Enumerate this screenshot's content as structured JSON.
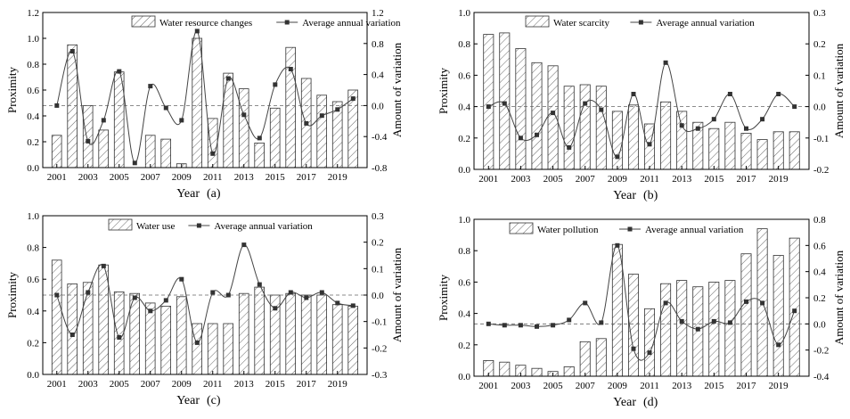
{
  "chart_data": [
    {
      "panel_label": "(a)",
      "type": "bar+line",
      "xlabel": "Year",
      "ylabel_left": "Proximity",
      "ylabel_right": "Amount of variation",
      "years": [
        2001,
        2002,
        2003,
        2004,
        2005,
        2006,
        2007,
        2008,
        2009,
        2010,
        2011,
        2012,
        2013,
        2014,
        2015,
        2016,
        2017,
        2018,
        2019,
        2020
      ],
      "xticks": [
        "2001",
        "2003",
        "2005",
        "2007",
        "2009",
        "2011",
        "2013",
        "2015",
        "2017",
        "2019"
      ],
      "left_ylim": [
        0,
        1.2
      ],
      "left_ticks": [
        "0.0",
        "0.2",
        "0.4",
        "0.6",
        "0.8",
        "1.0",
        "1.2"
      ],
      "right_ylim": [
        -0.8,
        1.2
      ],
      "right_ticks": [
        "-0.8",
        "-0.4",
        "0.0",
        "0.4",
        "0.8",
        "1.2"
      ],
      "legend_bar": "Water resource changes",
      "legend_line": "Average annual variation",
      "bar_values": [
        0.25,
        0.95,
        0.48,
        0.29,
        0.74,
        0.0,
        0.25,
        0.22,
        0.03,
        1.0,
        0.38,
        0.73,
        0.61,
        0.19,
        0.46,
        0.93,
        0.69,
        0.56,
        0.51,
        0.6
      ],
      "line_values": [
        0.0,
        0.7,
        -0.46,
        -0.19,
        0.44,
        -0.74,
        0.25,
        -0.03,
        -0.19,
        0.96,
        -0.62,
        0.35,
        -0.12,
        -0.42,
        0.27,
        0.47,
        -0.23,
        -0.13,
        -0.05,
        0.09
      ]
    },
    {
      "panel_label": "(b)",
      "type": "bar+line",
      "xlabel": "Year",
      "ylabel_left": "Proximity",
      "ylabel_right": "Amount of variation",
      "years": [
        2001,
        2002,
        2003,
        2004,
        2005,
        2006,
        2007,
        2008,
        2009,
        2010,
        2011,
        2012,
        2013,
        2014,
        2015,
        2016,
        2017,
        2018,
        2019,
        2020
      ],
      "xticks": [
        "2001",
        "2003",
        "2005",
        "2007",
        "2009",
        "2011",
        "2013",
        "2015",
        "2017",
        "2019"
      ],
      "left_ylim": [
        0,
        1.0
      ],
      "left_ticks": [
        "0.0",
        "0.2",
        "0.4",
        "0.6",
        "0.8",
        "1.0"
      ],
      "right_ylim": [
        -0.2,
        0.3
      ],
      "right_ticks": [
        "-0.2",
        "-0.1",
        "0.0",
        "0.1",
        "0.2",
        "0.3"
      ],
      "legend_bar": "Water scarcity",
      "legend_line": "Average annual variation",
      "bar_values": [
        0.86,
        0.87,
        0.77,
        0.68,
        0.66,
        0.53,
        0.54,
        0.53,
        0.37,
        0.41,
        0.29,
        0.43,
        0.37,
        0.3,
        0.26,
        0.3,
        0.23,
        0.19,
        0.24,
        0.24
      ],
      "line_values": [
        0.0,
        0.01,
        -0.1,
        -0.09,
        -0.02,
        -0.13,
        0.01,
        -0.01,
        -0.16,
        0.04,
        -0.12,
        0.14,
        -0.06,
        -0.07,
        -0.04,
        0.04,
        -0.07,
        -0.04,
        0.04,
        0.0
      ]
    },
    {
      "panel_label": "(c)",
      "type": "bar+line",
      "xlabel": "Year",
      "ylabel_left": "Proximity",
      "ylabel_right": "Amount of variation",
      "years": [
        2001,
        2002,
        2003,
        2004,
        2005,
        2006,
        2007,
        2008,
        2009,
        2010,
        2011,
        2012,
        2013,
        2014,
        2015,
        2016,
        2017,
        2018,
        2019,
        2020
      ],
      "xticks": [
        "2001",
        "2003",
        "2005",
        "2007",
        "2009",
        "2011",
        "2013",
        "2015",
        "2017",
        "2019"
      ],
      "left_ylim": [
        0,
        1.0
      ],
      "left_ticks": [
        "0.0",
        "0.2",
        "0.4",
        "0.6",
        "0.8",
        "1.0"
      ],
      "right_ylim": [
        -0.3,
        0.3
      ],
      "right_ticks": [
        "-0.3",
        "-0.2",
        "-0.1",
        "0.0",
        "0.1",
        "0.2",
        "0.3"
      ],
      "legend_bar": "Water use",
      "legend_line": "Average annual variation",
      "bar_values": [
        0.72,
        0.57,
        0.58,
        0.69,
        0.52,
        0.51,
        0.45,
        0.43,
        0.49,
        0.32,
        0.32,
        0.32,
        0.51,
        0.55,
        0.5,
        0.51,
        0.5,
        0.5,
        0.44,
        0.43
      ],
      "line_values": [
        0.0,
        -0.15,
        0.01,
        0.11,
        -0.16,
        -0.01,
        -0.06,
        -0.02,
        0.06,
        -0.18,
        0.01,
        0.0,
        0.19,
        0.04,
        -0.05,
        0.01,
        -0.01,
        0.01,
        -0.03,
        -0.04
      ]
    },
    {
      "panel_label": "(d)",
      "type": "bar+line",
      "xlabel": "Year",
      "ylabel_left": "Proximity",
      "ylabel_right": "Amount of variation",
      "years": [
        2001,
        2002,
        2003,
        2004,
        2005,
        2006,
        2007,
        2008,
        2009,
        2010,
        2011,
        2012,
        2013,
        2014,
        2015,
        2016,
        2017,
        2018,
        2019,
        2020
      ],
      "xticks": [
        "2001",
        "2003",
        "2005",
        "2007",
        "2009",
        "2011",
        "2013",
        "2015",
        "2017",
        "2019"
      ],
      "left_ylim": [
        0,
        1.0
      ],
      "left_ticks": [
        "0.0",
        "0.2",
        "0.4",
        "0.6",
        "0.8",
        "1.0"
      ],
      "right_ylim": [
        -0.4,
        0.8
      ],
      "right_ticks": [
        "-0.4",
        "-0.2",
        "0.0",
        "0.2",
        "0.4",
        "0.6",
        "0.8"
      ],
      "legend_bar": "Water pollution",
      "legend_line": "Average annual variation",
      "bar_values": [
        0.1,
        0.09,
        0.07,
        0.05,
        0.03,
        0.06,
        0.22,
        0.24,
        0.84,
        0.65,
        0.43,
        0.59,
        0.61,
        0.57,
        0.6,
        0.61,
        0.78,
        0.94,
        0.77,
        0.88
      ],
      "line_values": [
        0.0,
        -0.01,
        -0.01,
        -0.02,
        -0.01,
        0.03,
        0.16,
        0.01,
        0.6,
        -0.19,
        -0.22,
        0.16,
        0.02,
        -0.04,
        0.02,
        0.01,
        0.17,
        0.16,
        -0.16,
        0.1
      ]
    }
  ]
}
